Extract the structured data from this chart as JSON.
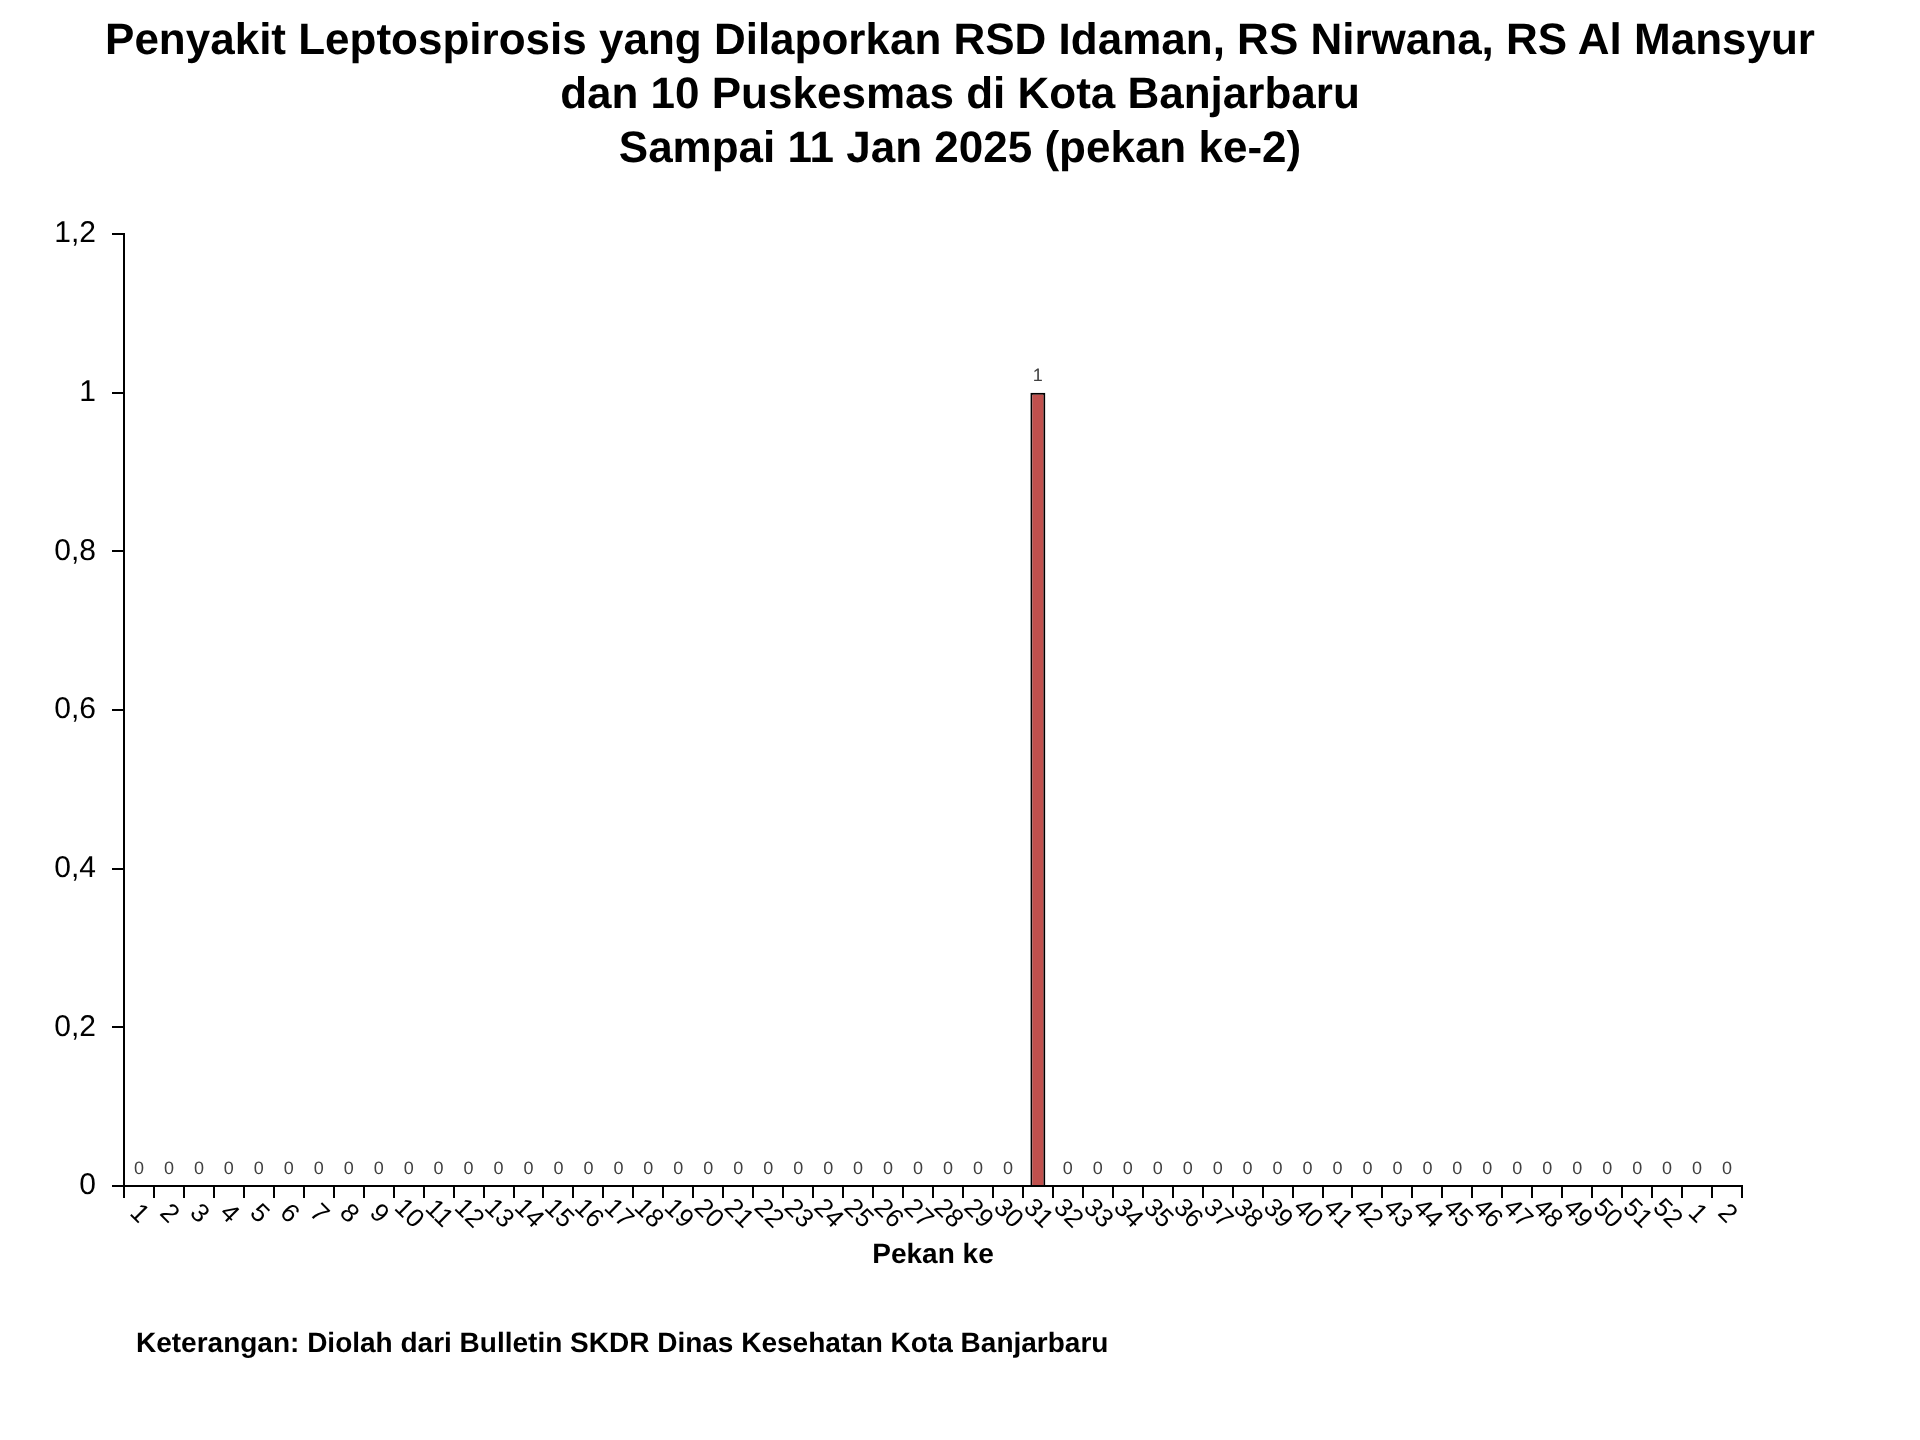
{
  "chart_data": {
    "type": "bar",
    "title": "Penyakit Leptospirosis yang Dilaporkan RSD Idaman, RS Nirwana, RS Al Mansyur dan 10 Puskesmas di Kota Banjarbaru",
    "subtitle": "Sampai 11 Jan 2025 (pekan ke-2)",
    "xlabel": "Pekan ke",
    "categories": [
      "1",
      "2",
      "3",
      "4",
      "5",
      "6",
      "7",
      "8",
      "9",
      "10",
      "11",
      "12",
      "13",
      "14",
      "15",
      "16",
      "17",
      "18",
      "19",
      "20",
      "21",
      "22",
      "23",
      "24",
      "25",
      "26",
      "27",
      "28",
      "29",
      "30",
      "31",
      "32",
      "33",
      "34",
      "35",
      "36",
      "37",
      "38",
      "39",
      "40",
      "41",
      "42",
      "43",
      "44",
      "45",
      "46",
      "47",
      "48",
      "49",
      "50",
      "51",
      "52",
      "1",
      "2"
    ],
    "values": [
      0,
      0,
      0,
      0,
      0,
      0,
      0,
      0,
      0,
      0,
      0,
      0,
      0,
      0,
      0,
      0,
      0,
      0,
      0,
      0,
      0,
      0,
      0,
      0,
      0,
      0,
      0,
      0,
      0,
      0,
      1,
      0,
      0,
      0,
      0,
      0,
      0,
      0,
      0,
      0,
      0,
      0,
      0,
      0,
      0,
      0,
      0,
      0,
      0,
      0,
      0,
      0,
      0,
      0
    ],
    "color": "#c0504d",
    "ylim": [
      0,
      1.2
    ],
    "yticks": [
      0,
      {
        "value": 0.2,
        "label": "0,2"
      },
      {
        "value": 0.4,
        "label": "0,4"
      },
      {
        "value": 0.6,
        "label": "0,6"
      },
      {
        "value": 0.8,
        "label": "0,8"
      },
      1,
      {
        "value": 1.2,
        "label": "1,2"
      }
    ],
    "grid": false,
    "legend": false,
    "data_labels": true,
    "annotations": [
      "Keterangan: Diolah dari Bulletin SKDR Dinas Kesehatan Kota Banjarbaru"
    ]
  }
}
